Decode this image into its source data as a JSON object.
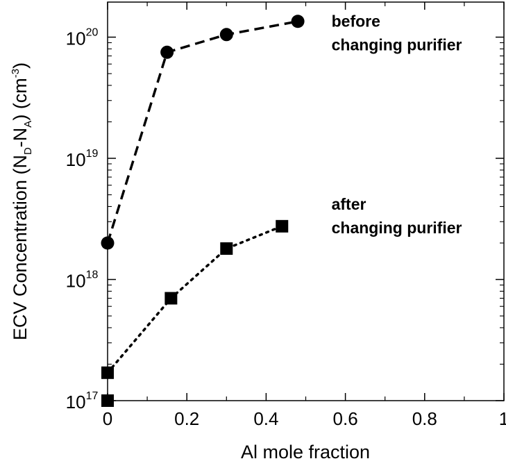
{
  "chart_data": {
    "type": "scatter",
    "xlabel": "Al mole fraction",
    "ylabel": {
      "prefix": "ECV Concentration (N",
      "sub_d": "D",
      "mid": "-N",
      "sub_a": "A",
      "mid2": ") (cm",
      "sup": "-3",
      "end": ")"
    },
    "xlim": [
      0,
      1
    ],
    "ylim": [
      1e+17,
      2e+20
    ],
    "yscale": "log",
    "x_ticks": [
      {
        "value": 0,
        "label": "0"
      },
      {
        "value": 0.2,
        "label": "0.2"
      },
      {
        "value": 0.4,
        "label": "0.4"
      },
      {
        "value": 0.6,
        "label": "0.6"
      },
      {
        "value": 0.8,
        "label": "0.8"
      },
      {
        "value": 1,
        "label": "1"
      }
    ],
    "y_ticks": [
      {
        "value": 1e+17,
        "base": "10",
        "exp": "17"
      },
      {
        "value": 1e+18,
        "base": "10",
        "exp": "18"
      },
      {
        "value": 1e+19,
        "base": "10",
        "exp": "19"
      },
      {
        "value": 1e+20,
        "base": "10",
        "exp": "20"
      }
    ],
    "grid": false,
    "series": [
      {
        "marker": "circle",
        "line": "dashed",
        "label_lines": [
          "before",
          "changing purifier"
        ],
        "label_anchor": {
          "x": 0.565,
          "y": 1.1e+20
        },
        "points": [
          {
            "x": 0.0,
            "y": 2e+18
          },
          {
            "x": 0.15,
            "y": 7.5e+19
          },
          {
            "x": 0.3,
            "y": 1.05e+20
          },
          {
            "x": 0.48,
            "y": 1.35e+20
          }
        ]
      },
      {
        "marker": "square",
        "line": "dotted",
        "label_lines": [
          "after",
          "changing purifier"
        ],
        "label_anchor": {
          "x": 0.565,
          "y": 3.4e+18
        },
        "points": [
          {
            "x": 0.0,
            "y": 1e+17
          },
          {
            "x": 0.0,
            "y": 1.7e+17
          },
          {
            "x": 0.16,
            "y": 7e+17
          },
          {
            "x": 0.3,
            "y": 1.8e+18
          },
          {
            "x": 0.44,
            "y": 2.75e+18
          }
        ]
      }
    ]
  }
}
